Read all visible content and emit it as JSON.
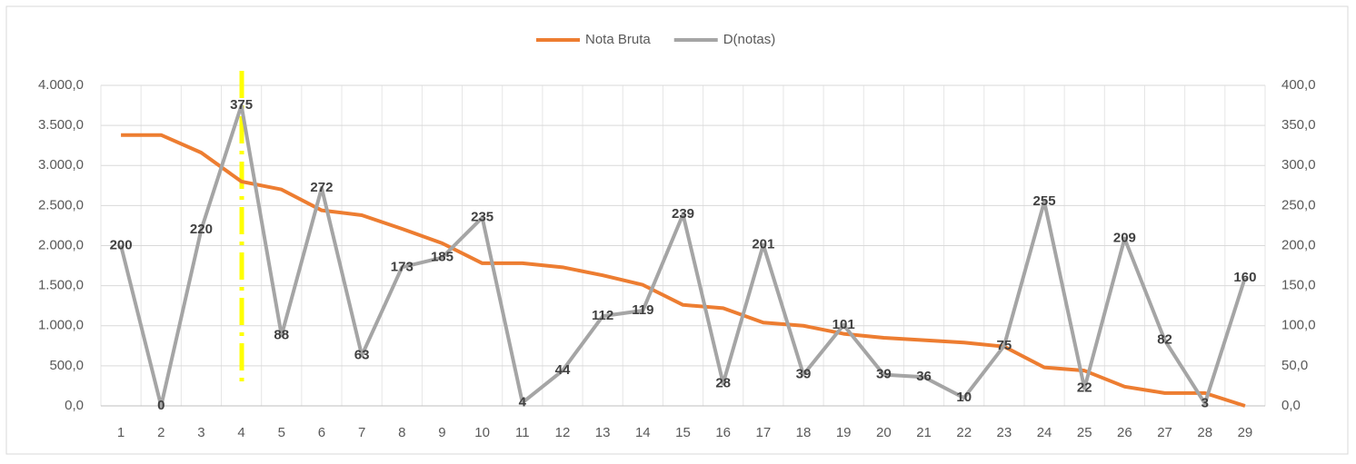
{
  "chart_data": {
    "type": "line",
    "categories": [
      "1",
      "2",
      "3",
      "4",
      "5",
      "6",
      "7",
      "8",
      "9",
      "10",
      "11",
      "12",
      "13",
      "14",
      "15",
      "16",
      "17",
      "18",
      "19",
      "20",
      "21",
      "22",
      "23",
      "24",
      "25",
      "26",
      "27",
      "28",
      "29"
    ],
    "series": [
      {
        "name": "Nota Bruta",
        "color": "#ed7d31",
        "axis": "y",
        "values": [
          3380,
          3380,
          3160,
          2800,
          2700,
          2440,
          2380,
          2210,
          2030,
          1780,
          1780,
          1730,
          1630,
          1510,
          1260,
          1220,
          1040,
          1000,
          900,
          850,
          820,
          790,
          740,
          480,
          440,
          240,
          160,
          160,
          0
        ]
      },
      {
        "name": "D(notas)",
        "color": "#a5a5a5",
        "axis": "y2",
        "values": [
          200,
          0,
          220,
          375,
          88,
          272,
          63,
          173,
          185,
          235,
          4,
          44,
          112,
          119,
          239,
          28,
          201,
          39,
          101,
          39,
          36,
          10,
          75,
          255,
          22,
          209,
          82,
          3,
          160
        ]
      }
    ],
    "ylim": [
      0,
      4000
    ],
    "yticks": [
      {
        "value": 0,
        "label": "0,0"
      },
      {
        "value": 500,
        "label": "500,0"
      },
      {
        "value": 1000,
        "label": "1.000,0"
      },
      {
        "value": 1500,
        "label": "1.500,0"
      },
      {
        "value": 2000,
        "label": "2.000,0"
      },
      {
        "value": 2500,
        "label": "2.500,0"
      },
      {
        "value": 3000,
        "label": "3.000,0"
      },
      {
        "value": 3500,
        "label": "3.500,0"
      },
      {
        "value": 4000,
        "label": "4.000,0"
      }
    ],
    "y2lim": [
      0,
      400
    ],
    "y2ticks": [
      {
        "value": 0,
        "label": "0,0"
      },
      {
        "value": 50,
        "label": "50,0"
      },
      {
        "value": 100,
        "label": "100,0"
      },
      {
        "value": 150,
        "label": "150,0"
      },
      {
        "value": 200,
        "label": "200,0"
      },
      {
        "value": 250,
        "label": "250,0"
      },
      {
        "value": 300,
        "label": "300,0"
      },
      {
        "value": 350,
        "label": "350,0"
      },
      {
        "value": 400,
        "label": "400,0"
      }
    ],
    "grid": true,
    "legend": "top",
    "data_labels_series": 1
  }
}
